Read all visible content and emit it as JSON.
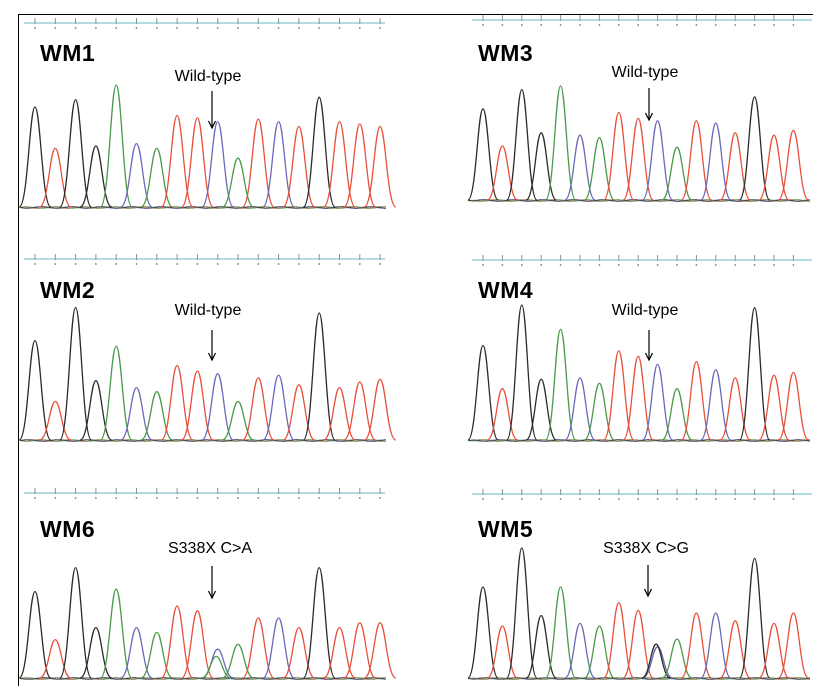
{
  "colors": {
    "G": "#2b2b2b",
    "A": "#4a9a4a",
    "T": "#e8503c",
    "C": "#6a6ab8",
    "ruler": "#86c8cf",
    "baseline": "#1a1a1a"
  },
  "panels": [
    {
      "id": "WM1",
      "label": "WM1",
      "call": "Wild-type",
      "mutant": false,
      "peaks": [
        {
          "base": "G",
          "h": 0.82
        },
        {
          "base": "T",
          "h": 0.48
        },
        {
          "base": "G",
          "h": 0.88
        },
        {
          "base": "G",
          "h": 0.5
        },
        {
          "base": "A",
          "h": 1.0
        },
        {
          "base": "C",
          "h": 0.52
        },
        {
          "base": "A",
          "h": 0.48
        },
        {
          "base": "T",
          "h": 0.75
        },
        {
          "base": "T",
          "h": 0.73
        },
        {
          "base": "C",
          "h": 0.7
        },
        {
          "base": "A",
          "h": 0.4
        },
        {
          "base": "T",
          "h": 0.72
        },
        {
          "base": "C",
          "h": 0.7
        },
        {
          "base": "T",
          "h": 0.66
        },
        {
          "base": "G",
          "h": 0.9
        },
        {
          "base": "T",
          "h": 0.7
        },
        {
          "base": "T",
          "h": 0.68
        },
        {
          "base": "T",
          "h": 0.66
        }
      ]
    },
    {
      "id": "WM3",
      "label": "WM3",
      "call": "Wild-type",
      "mutant": false,
      "peaks": [
        {
          "base": "G",
          "h": 0.76
        },
        {
          "base": "T",
          "h": 0.45
        },
        {
          "base": "G",
          "h": 0.92
        },
        {
          "base": "G",
          "h": 0.56
        },
        {
          "base": "A",
          "h": 0.95
        },
        {
          "base": "C",
          "h": 0.54
        },
        {
          "base": "A",
          "h": 0.52
        },
        {
          "base": "T",
          "h": 0.73
        },
        {
          "base": "T",
          "h": 0.68
        },
        {
          "base": "C",
          "h": 0.66
        },
        {
          "base": "A",
          "h": 0.44
        },
        {
          "base": "T",
          "h": 0.66
        },
        {
          "base": "C",
          "h": 0.64
        },
        {
          "base": "T",
          "h": 0.56
        },
        {
          "base": "G",
          "h": 0.86
        },
        {
          "base": "T",
          "h": 0.54
        },
        {
          "base": "T",
          "h": 0.58
        },
        {
          "base": "T",
          "h": 0.56
        }
      ]
    },
    {
      "id": "WM2",
      "label": "WM2",
      "call": "Wild-type",
      "mutant": false,
      "peaks": [
        {
          "base": "G",
          "h": 0.72
        },
        {
          "base": "T",
          "h": 0.28
        },
        {
          "base": "G",
          "h": 0.96
        },
        {
          "base": "G",
          "h": 0.43
        },
        {
          "base": "A",
          "h": 0.68
        },
        {
          "base": "C",
          "h": 0.38
        },
        {
          "base": "A",
          "h": 0.35
        },
        {
          "base": "T",
          "h": 0.54
        },
        {
          "base": "T",
          "h": 0.5
        },
        {
          "base": "C",
          "h": 0.48
        },
        {
          "base": "A",
          "h": 0.28
        },
        {
          "base": "T",
          "h": 0.45
        },
        {
          "base": "C",
          "h": 0.47
        },
        {
          "base": "T",
          "h": 0.4
        },
        {
          "base": "G",
          "h": 0.92
        },
        {
          "base": "T",
          "h": 0.38
        },
        {
          "base": "T",
          "h": 0.42
        },
        {
          "base": "T",
          "h": 0.44
        }
      ]
    },
    {
      "id": "WM4",
      "label": "WM4",
      "call": "Wild-type",
      "mutant": false,
      "peaks": [
        {
          "base": "G",
          "h": 0.7
        },
        {
          "base": "T",
          "h": 0.38
        },
        {
          "base": "G",
          "h": 1.0
        },
        {
          "base": "G",
          "h": 0.45
        },
        {
          "base": "A",
          "h": 0.82
        },
        {
          "base": "C",
          "h": 0.46
        },
        {
          "base": "A",
          "h": 0.42
        },
        {
          "base": "T",
          "h": 0.66
        },
        {
          "base": "T",
          "h": 0.62
        },
        {
          "base": "C",
          "h": 0.56
        },
        {
          "base": "A",
          "h": 0.38
        },
        {
          "base": "T",
          "h": 0.58
        },
        {
          "base": "C",
          "h": 0.52
        },
        {
          "base": "T",
          "h": 0.46
        },
        {
          "base": "G",
          "h": 0.98
        },
        {
          "base": "T",
          "h": 0.48
        },
        {
          "base": "T",
          "h": 0.5
        },
        {
          "base": "T",
          "h": 0.56
        }
      ]
    },
    {
      "id": "WM6",
      "label": "WM6",
      "call": "S338X C>A",
      "mutant": true,
      "peaks": [
        {
          "base": "G",
          "h": 0.72
        },
        {
          "base": "T",
          "h": 0.32
        },
        {
          "base": "G",
          "h": 0.92
        },
        {
          "base": "G",
          "h": 0.42
        },
        {
          "base": "A",
          "h": 0.74
        },
        {
          "base": "C",
          "h": 0.42
        },
        {
          "base": "A",
          "h": 0.38
        },
        {
          "base": "T",
          "h": 0.6
        },
        {
          "base": "T",
          "h": 0.56
        },
        {
          "base": "C",
          "h": 0.24,
          "second": {
            "base": "A",
            "h": 0.18
          }
        },
        {
          "base": "A",
          "h": 0.28
        },
        {
          "base": "T",
          "h": 0.5
        },
        {
          "base": "C",
          "h": 0.5
        },
        {
          "base": "T",
          "h": 0.42
        },
        {
          "base": "G",
          "h": 0.92
        },
        {
          "base": "T",
          "h": 0.42
        },
        {
          "base": "T",
          "h": 0.46
        },
        {
          "base": "T",
          "h": 0.46
        }
      ]
    },
    {
      "id": "WM5",
      "label": "WM5",
      "call": "S338X C>G",
      "mutant": true,
      "peaks": [
        {
          "base": "G",
          "h": 0.7
        },
        {
          "base": "T",
          "h": 0.4
        },
        {
          "base": "G",
          "h": 1.0
        },
        {
          "base": "G",
          "h": 0.48
        },
        {
          "base": "A",
          "h": 0.7
        },
        {
          "base": "C",
          "h": 0.42
        },
        {
          "base": "A",
          "h": 0.4
        },
        {
          "base": "T",
          "h": 0.58
        },
        {
          "base": "T",
          "h": 0.52
        },
        {
          "base": "C",
          "h": 0.24,
          "second": {
            "base": "G",
            "h": 0.26
          }
        },
        {
          "base": "A",
          "h": 0.3
        },
        {
          "base": "T",
          "h": 0.5
        },
        {
          "base": "C",
          "h": 0.5
        },
        {
          "base": "T",
          "h": 0.44
        },
        {
          "base": "G",
          "h": 0.92
        },
        {
          "base": "T",
          "h": 0.42
        },
        {
          "base": "T",
          "h": 0.5
        },
        {
          "base": "T",
          "h": 0.52
        }
      ]
    }
  ]
}
